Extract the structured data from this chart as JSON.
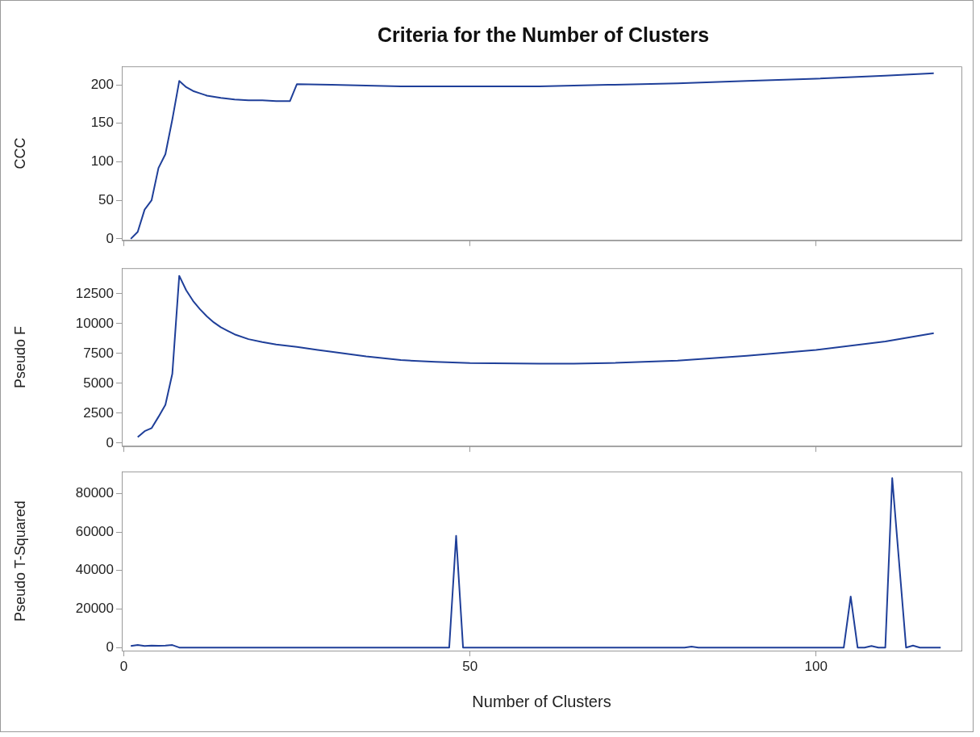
{
  "chart_data": [
    {
      "type": "line",
      "title": "Criteria for the Number of Clusters",
      "ylabel": "CCC",
      "xlim": [
        -0.3,
        121
      ],
      "xticks": [
        0,
        50,
        100
      ],
      "ylim": [
        -2,
        224
      ],
      "yticks": [
        0,
        50,
        100,
        150,
        200
      ],
      "tick_labels": "y",
      "grid": false,
      "legend": false,
      "marker": "none",
      "series": [
        {
          "color": "#1f3f99",
          "x": [
            1,
            2,
            3,
            4,
            5,
            6,
            7,
            8,
            9,
            10,
            11,
            12,
            14,
            16,
            18,
            20,
            22,
            24,
            25,
            30,
            40,
            50,
            60,
            70,
            80,
            90,
            100,
            110,
            117
          ],
          "values": [
            0,
            9,
            38,
            50,
            92,
            110,
            155,
            205,
            197,
            192,
            189,
            186,
            183,
            181,
            180,
            180,
            179,
            179,
            201,
            200,
            198,
            198,
            198,
            200,
            202,
            205,
            208,
            212,
            215
          ]
        }
      ]
    },
    {
      "type": "line",
      "ylabel": "Pseudo F",
      "xlim": [
        -0.3,
        121
      ],
      "xticks": [
        0,
        50,
        100
      ],
      "ylim": [
        -260,
        14640
      ],
      "yticks": [
        0,
        2500,
        5000,
        7500,
        10000,
        12500
      ],
      "tick_labels": "y",
      "grid": false,
      "legend": false,
      "marker": "none",
      "series": [
        {
          "color": "#1f3f99",
          "x": [
            2,
            3,
            4,
            5,
            6,
            7,
            8,
            9,
            10,
            11,
            12,
            13,
            14,
            15,
            16,
            18,
            20,
            22,
            25,
            28,
            30,
            35,
            40,
            45,
            50,
            60,
            65,
            70,
            80,
            90,
            100,
            110,
            117
          ],
          "values": [
            500,
            1000,
            1250,
            2200,
            3200,
            5800,
            14000,
            12800,
            11900,
            11200,
            10600,
            10100,
            9700,
            9400,
            9100,
            8700,
            8450,
            8250,
            8050,
            7800,
            7650,
            7250,
            6950,
            6800,
            6700,
            6650,
            6650,
            6700,
            6900,
            7300,
            7800,
            8500,
            9200
          ]
        }
      ]
    },
    {
      "type": "line",
      "ylabel": "Pseudo T-Squared",
      "xlabel": "Number of Clusters",
      "xlim": [
        -0.3,
        121
      ],
      "xticks": [
        0,
        50,
        100
      ],
      "ylim": [
        -1600,
        91400
      ],
      "yticks": [
        0,
        20000,
        40000,
        60000,
        80000
      ],
      "grid": false,
      "legend": false,
      "marker": "none",
      "series": [
        {
          "color": "#1f3f99",
          "x": [
            1,
            2,
            3,
            4,
            5,
            6,
            7,
            8,
            9,
            47,
            48,
            49,
            81,
            82,
            83,
            104,
            105,
            106,
            107,
            108,
            109,
            110,
            111,
            113,
            114,
            115,
            118
          ],
          "values": [
            800,
            1300,
            800,
            1000,
            900,
            1000,
            1300,
            0,
            0,
            0,
            58000,
            0,
            0,
            500,
            0,
            0,
            26500,
            0,
            0,
            800,
            0,
            0,
            88000,
            0,
            1000,
            0,
            0
          ]
        }
      ]
    }
  ]
}
